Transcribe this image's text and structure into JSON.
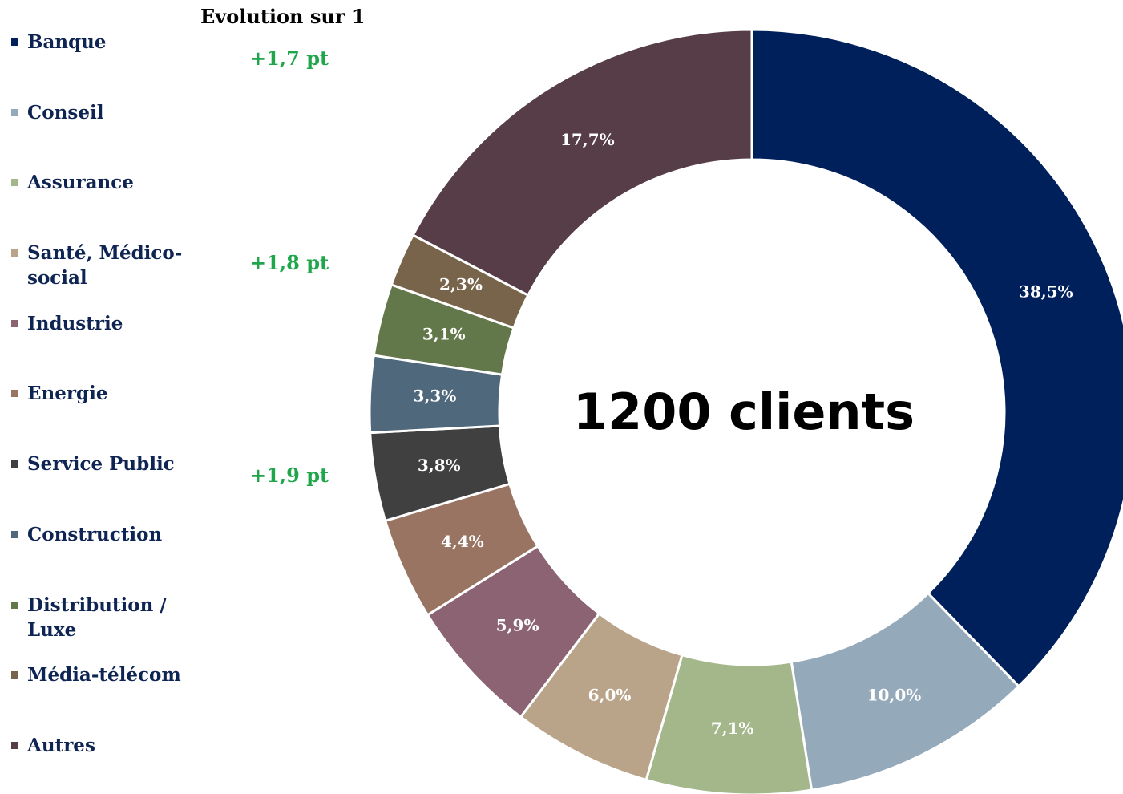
{
  "chart_data": {
    "type": "donut",
    "center_label": "1200 clients",
    "annotation_title": "Evolution sur 1",
    "annotations": [
      "+1,7 pt",
      "+1,8 pt",
      "+1,9 pt"
    ],
    "categories": [
      "Banque",
      "Conseil",
      "Assurance",
      "Santé, Médico-social",
      "Industrie",
      "Energie",
      "Service Public",
      "Construction",
      "Distribution / Luxe",
      "Média-télécom",
      "Autres"
    ],
    "values": [
      38.5,
      10.0,
      7.1,
      6.0,
      5.9,
      4.4,
      3.8,
      3.3,
      3.1,
      2.3,
      17.7
    ],
    "value_labels": [
      "38,5%",
      "10,0%",
      "7,1%",
      "6,0%",
      "5,9%",
      "4,4%",
      "3,8%",
      "3,3%",
      "3,1%",
      "2,3%",
      "17,7%"
    ],
    "colors": [
      "#00205b",
      "#94a9ba",
      "#a4b78a",
      "#b9a389",
      "#8b6373",
      "#9a7462",
      "#404040",
      "#50687c",
      "#63784a",
      "#77644a",
      "#563d48"
    ],
    "annotation_color": "#1fa64a",
    "legend": "left"
  }
}
